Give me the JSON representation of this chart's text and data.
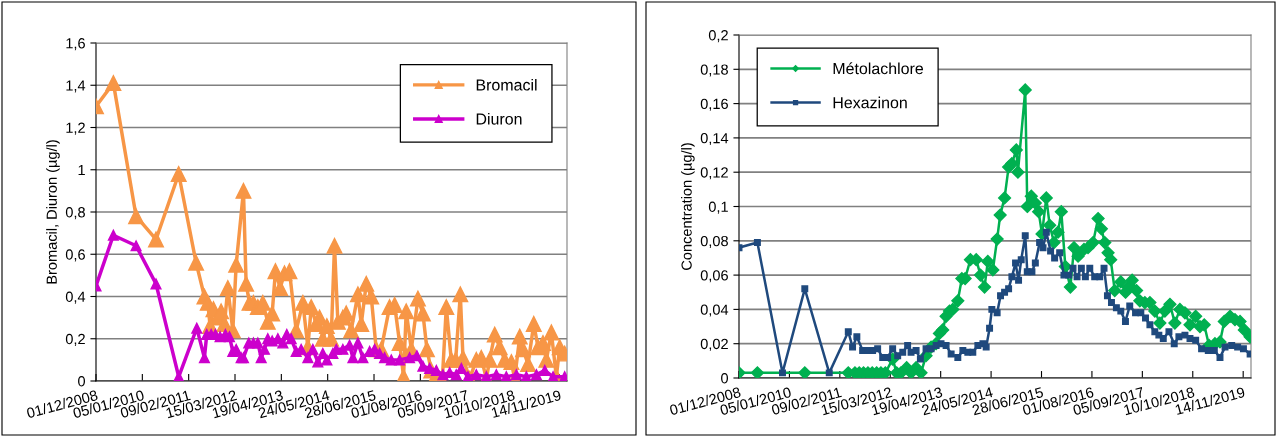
{
  "chart_data": [
    {
      "type": "line",
      "ylabel": "Bromacil, Diuron (µg/l)",
      "grid": "y",
      "legend": "top right",
      "marker": "triangle",
      "xlim": [
        "2008-12-01",
        "2020-01-19"
      ],
      "xticks": [
        {
          "value": "2008-12-01",
          "label": "01/12/2008"
        },
        {
          "value": "2010-01-05",
          "label": "05/01/2010"
        },
        {
          "value": "2011-02-09",
          "label": "09/02/2011"
        },
        {
          "value": "2012-03-15",
          "label": "15/03/2012"
        },
        {
          "value": "2013-04-19",
          "label": "19/04/2013"
        },
        {
          "value": "2014-05-24",
          "label": "24/05/2014"
        },
        {
          "value": "2015-06-28",
          "label": "28/06/2015"
        },
        {
          "value": "2016-08-01",
          "label": "01/08/2016"
        },
        {
          "value": "2017-09-05",
          "label": "05/09/2017"
        },
        {
          "value": "2018-10-10",
          "label": "10/10/2018"
        },
        {
          "value": "2019-11-14",
          "label": "14/11/2019"
        }
      ],
      "ylim": [
        0,
        1.6
      ],
      "yticks": [
        0,
        {
          "value": 0.2,
          "label": "0,2"
        },
        {
          "value": 0.4,
          "label": "0,4"
        },
        {
          "value": 0.6,
          "label": "0,6"
        },
        {
          "value": 0.8,
          "label": "0,8"
        },
        1,
        {
          "value": 1.2,
          "label": "1,2"
        },
        {
          "value": 1.4,
          "label": "1,4"
        },
        {
          "value": 1.6,
          "label": "1,6"
        }
      ],
      "series": [
        {
          "name": "Bromacil",
          "color": "#f79646",
          "x": [
            "2008-12-01",
            "2009-04-30",
            "2009-11-12",
            "2010-05-03",
            "2010-11-15",
            "2011-04-14",
            "2011-06-25",
            "2011-07-24",
            "2011-08-13",
            "2011-09-11",
            "2011-10-18",
            "2011-11-16",
            "2011-12-15",
            "2012-01-13",
            "2012-02-25",
            "2012-03-25",
            "2012-05-27",
            "2012-06-19",
            "2012-07-18",
            "2012-08-21",
            "2012-09-28",
            "2012-11-10",
            "2012-12-23",
            "2013-01-30",
            "2013-02-27",
            "2013-04-09",
            "2013-05-16",
            "2013-06-28",
            "2013-08-25",
            "2013-10-22",
            "2013-12-04",
            "2014-01-02",
            "2014-02-14",
            "2014-03-15",
            "2014-04-12",
            "2014-05-17",
            "2014-06-23",
            "2014-07-22",
            "2014-08-20",
            "2014-10-02",
            "2014-10-31",
            "2014-12-13",
            "2015-02-09",
            "2015-03-10",
            "2015-04-22",
            "2015-06-04",
            "2015-07-17",
            "2015-08-29",
            "2015-11-09",
            "2015-12-23",
            "2016-02-04",
            "2016-03-09",
            "2016-04-01",
            "2016-05-15",
            "2016-07-11",
            "2016-08-23",
            "2016-09-27",
            "2016-11-03",
            "2016-12-17",
            "2017-02-06",
            "2017-03-13",
            "2017-04-25",
            "2017-06-02",
            "2017-07-12",
            "2017-08-04",
            "2017-10-01",
            "2017-11-27",
            "2018-01-09",
            "2018-02-22",
            "2018-03-22",
            "2018-05-05",
            "2018-06-17",
            "2018-07-30",
            "2018-09-26",
            "2018-10-24",
            "2018-12-07",
            "2019-01-04",
            "2019-02-17",
            "2019-04-07",
            "2019-05-14",
            "2019-06-26",
            "2019-07-25",
            "2019-09-06",
            "2019-10-19",
            "2019-11-17",
            "2019-12-30"
          ],
          "values": [
            1.3,
            1.41,
            0.78,
            0.67,
            0.98,
            0.56,
            0.4,
            0.37,
            0.26,
            0.34,
            0.3,
            0.33,
            0.27,
            0.44,
            0.24,
            0.55,
            0.9,
            0.46,
            0.37,
            0.37,
            0.35,
            0.37,
            0.28,
            0.32,
            0.52,
            0.44,
            0.51,
            0.52,
            0.24,
            0.37,
            0.16,
            0.35,
            0.27,
            0.3,
            0.2,
            0.26,
            0.2,
            0.64,
            0.28,
            0.3,
            0.32,
            0.24,
            0.41,
            0.27,
            0.46,
            0.4,
            0.15,
            0.15,
            0.35,
            0.36,
            0.18,
            0.02,
            0.33,
            0.15,
            0.39,
            0.32,
            0.15,
            0.05,
            0.03,
            0.0,
            0.35,
            0.1,
            0.1,
            0.41,
            0.11,
            0.01,
            0.1,
            0.11,
            0.01,
            0.1,
            0.22,
            0.16,
            0.1,
            0.09,
            0.01,
            0.21,
            0.15,
            0.08,
            0.27,
            0.16,
            0.18,
            0.1,
            0.23,
            0.02,
            0.16,
            0.13
          ]
        },
        {
          "name": "Diuron",
          "color": "#cc00cc",
          "x": [
            "2008-12-01",
            "2009-04-30",
            "2009-11-12",
            "2010-05-03",
            "2010-11-15",
            "2011-04-20",
            "2011-06-25",
            "2011-07-15",
            "2011-08-22",
            "2011-09-28",
            "2011-11-07",
            "2011-12-23",
            "2012-01-27",
            "2012-02-25",
            "2012-03-25",
            "2012-05-07",
            "2012-05-27",
            "2012-07-12",
            "2012-08-21",
            "2012-09-28",
            "2012-10-27",
            "2012-11-24",
            "2012-12-23",
            "2013-01-30",
            "2013-03-20",
            "2013-05-02",
            "2013-06-05",
            "2013-07-13",
            "2013-08-25",
            "2013-10-07",
            "2013-12-04",
            "2014-01-16",
            "2014-02-28",
            "2014-04-12",
            "2014-05-17",
            "2014-07-08",
            "2014-08-06",
            "2014-10-02",
            "2014-11-29",
            "2014-12-28",
            "2015-02-09",
            "2015-03-24",
            "2015-05-21",
            "2015-07-03",
            "2015-08-15",
            "2015-09-27",
            "2015-11-24",
            "2016-02-04",
            "2016-04-30",
            "2016-07-02",
            "2016-08-23",
            "2016-10-20",
            "2016-12-17",
            "2017-02-12",
            "2017-04-11",
            "2017-06-07",
            "2017-07-21",
            "2017-09-16",
            "2017-11-27",
            "2018-02-22",
            "2018-05-19",
            "2018-08-13",
            "2018-11-08",
            "2019-02-02",
            "2019-04-30",
            "2019-07-11",
            "2019-09-21",
            "2019-12-30"
          ],
          "values": [
            0.45,
            0.69,
            0.64,
            0.46,
            0.02,
            0.25,
            0.11,
            0.22,
            0.22,
            0.22,
            0.21,
            0.22,
            0.21,
            0.14,
            0.15,
            0.11,
            0.11,
            0.18,
            0.18,
            0.18,
            0.11,
            0.15,
            0.2,
            0.19,
            0.2,
            0.18,
            0.22,
            0.2,
            0.14,
            0.15,
            0.11,
            0.15,
            0.09,
            0.13,
            0.1,
            0.13,
            0.15,
            0.15,
            0.17,
            0.11,
            0.18,
            0.11,
            0.14,
            0.15,
            0.13,
            0.11,
            0.1,
            0.1,
            0.11,
            0.12,
            0.07,
            0.06,
            0.05,
            0.03,
            0.04,
            0.03,
            0.06,
            0.02,
            0.03,
            0.02,
            0.03,
            0.02,
            0.03,
            0.02,
            0.03,
            0.05,
            0.02,
            0.02
          ]
        }
      ]
    },
    {
      "type": "line",
      "ylabel": "Concentration (µg/l)",
      "grid": "y",
      "legend": "top left",
      "xlim": [
        "2008-12-01",
        "2020-01-15"
      ],
      "xticks": [
        {
          "value": "2008-12-01",
          "label": "01/12/2008"
        },
        {
          "value": "2010-01-05",
          "label": "05/01/2010"
        },
        {
          "value": "2011-02-09",
          "label": "09/02/2011"
        },
        {
          "value": "2012-03-15",
          "label": "15/03/2012"
        },
        {
          "value": "2013-04-19",
          "label": "19/04/2013"
        },
        {
          "value": "2014-05-24",
          "label": "24/05/2014"
        },
        {
          "value": "2015-06-28",
          "label": "28/06/2015"
        },
        {
          "value": "2016-08-01",
          "label": "01/08/2016"
        },
        {
          "value": "2017-09-05",
          "label": "05/09/2017"
        },
        {
          "value": "2018-10-10",
          "label": "10/10/2018"
        },
        {
          "value": "2019-11-14",
          "label": "14/11/2019"
        }
      ],
      "ylim": [
        0,
        0.2
      ],
      "yticks": [
        0,
        {
          "value": 0.02,
          "label": "0,02"
        },
        {
          "value": 0.04,
          "label": "0,04"
        },
        {
          "value": 0.06,
          "label": "0,06"
        },
        {
          "value": 0.08,
          "label": "0,08"
        },
        {
          "value": 0.1,
          "label": "0,1"
        },
        {
          "value": 0.12,
          "label": "0,12"
        },
        {
          "value": 0.14,
          "label": "0,14"
        },
        {
          "value": 0.16,
          "label": "0,16"
        },
        {
          "value": 0.18,
          "label": "0,18"
        },
        {
          "value": 0.2,
          "label": "0,2"
        }
      ],
      "series": [
        {
          "name": "Métolachlore",
          "color": "#00b050",
          "marker": "diamond",
          "x": [
            "2008-12-01",
            "2009-04-26",
            "2010-05-07",
            "2011-04-17",
            "2011-06-09",
            "2011-07-13",
            "2011-08-16",
            "2011-09-20",
            "2011-10-24",
            "2011-11-28",
            "2012-01-01",
            "2012-02-05",
            "2012-04-03",
            "2012-05-05",
            "2012-06-08",
            "2012-07-23",
            "2012-08-27",
            "2012-10-06",
            "2012-11-14",
            "2012-12-24",
            "2013-02-02",
            "2013-03-14",
            "2013-04-09",
            "2013-05-05",
            "2013-06-01",
            "2013-06-28",
            "2013-07-24",
            "2013-09-02",
            "2013-10-04",
            "2013-10-30",
            "2013-12-11",
            "2014-01-26",
            "2014-03-01",
            "2014-04-02",
            "2014-04-28",
            "2014-06-07",
            "2014-07-11",
            "2014-08-04",
            "2014-09-08",
            "2014-10-10",
            "2014-11-05",
            "2014-12-10",
            "2014-12-23",
            "2015-02-19",
            "2015-03-07",
            "2015-04-08",
            "2015-05-10",
            "2015-06-05",
            "2015-07-02",
            "2015-08-05",
            "2015-09-01",
            "2015-10-05",
            "2015-11-06",
            "2015-12-02",
            "2016-01-03",
            "2016-02-12",
            "2016-03-12",
            "2016-04-13",
            "2016-05-30",
            "2016-07-01",
            "2016-08-10",
            "2016-09-19",
            "2016-10-15",
            "2016-11-11",
            "2016-12-07",
            "2016-12-28",
            "2017-01-29",
            "2017-03-18",
            "2017-04-24",
            "2017-05-21",
            "2017-06-16",
            "2017-07-21",
            "2017-08-16",
            "2017-09-25",
            "2017-11-04",
            "2017-12-13",
            "2018-01-22",
            "2018-03-03",
            "2018-04-12",
            "2018-05-21",
            "2018-06-30",
            "2018-08-09",
            "2018-09-18",
            "2018-11-02",
            "2018-12-06",
            "2019-01-09",
            "2019-02-16",
            "2019-04-04",
            "2019-05-14",
            "2019-06-17",
            "2019-08-02",
            "2019-09-10",
            "2019-10-20",
            "2019-11-23",
            "2020-01-08"
          ],
          "values": [
            0.003,
            0.003,
            0.003,
            0.003,
            0.003,
            0.003,
            0.003,
            0.003,
            0.003,
            0.003,
            0.003,
            0.003,
            0.011,
            0.003,
            0.003,
            0.006,
            0.003,
            0.006,
            0.003,
            0.013,
            0.018,
            0.02,
            0.026,
            0.028,
            0.036,
            0.039,
            0.04,
            0.045,
            0.058,
            0.058,
            0.069,
            0.069,
            0.06,
            0.053,
            0.068,
            0.063,
            0.081,
            0.095,
            0.105,
            0.123,
            0.125,
            0.133,
            0.12,
            0.168,
            0.1,
            0.106,
            0.102,
            0.097,
            0.084,
            0.105,
            0.089,
            0.079,
            0.085,
            0.097,
            0.065,
            0.053,
            0.076,
            0.071,
            0.075,
            0.076,
            0.079,
            0.093,
            0.087,
            0.079,
            0.073,
            0.069,
            0.051,
            0.056,
            0.05,
            0.053,
            0.057,
            0.051,
            0.045,
            0.044,
            0.044,
            0.039,
            0.032,
            0.039,
            0.043,
            0.032,
            0.04,
            0.038,
            0.031,
            0.036,
            0.03,
            0.031,
            0.019,
            0.02,
            0.021,
            0.033,
            0.036,
            0.034,
            0.033,
            0.028,
            0.024
          ]
        },
        {
          "name": "Hexazinon",
          "color": "#1f497d",
          "marker": "square",
          "x": [
            "2008-12-01",
            "2009-04-26",
            "2009-11-11",
            "2010-05-07",
            "2010-11-17",
            "2011-04-17",
            "2011-05-21",
            "2011-06-24",
            "2011-08-09",
            "2011-09-17",
            "2011-10-27",
            "2011-12-06",
            "2012-01-15",
            "2012-02-23",
            "2012-04-03",
            "2012-05-13",
            "2012-06-22",
            "2012-07-31",
            "2012-08-27",
            "2012-10-06",
            "2012-11-09",
            "2012-12-24",
            "2013-02-02",
            "2013-03-14",
            "2013-04-22",
            "2013-06-01",
            "2013-07-11",
            "2013-09-02",
            "2013-10-12",
            "2013-11-20",
            "2013-12-30",
            "2014-02-08",
            "2014-03-20",
            "2014-04-15",
            "2014-05-12",
            "2014-05-30",
            "2014-07-11",
            "2014-08-07",
            "2014-09-08",
            "2014-10-10",
            "2014-11-05",
            "2014-12-04",
            "2014-12-28",
            "2015-01-18",
            "2015-02-19",
            "2015-03-07",
            "2015-04-13",
            "2015-05-10",
            "2015-06-13",
            "2015-07-10",
            "2015-08-05",
            "2015-09-08",
            "2015-10-10",
            "2015-11-19",
            "2015-12-23",
            "2016-01-30",
            "2016-03-04",
            "2016-04-05",
            "2016-05-09",
            "2016-06-10",
            "2016-07-15",
            "2016-08-23",
            "2016-10-02",
            "2016-11-05",
            "2016-12-02",
            "2017-01-03",
            "2017-02-11",
            "2017-03-18",
            "2017-04-24",
            "2017-05-28",
            "2017-07-13",
            "2017-08-24",
            "2017-09-30",
            "2017-11-04",
            "2017-12-13",
            "2018-01-14",
            "2018-02-18",
            "2018-04-04",
            "2018-05-16",
            "2018-06-22",
            "2018-08-09",
            "2018-09-18",
            "2018-11-02",
            "2018-12-19",
            "2019-02-10",
            "2019-03-30",
            "2019-05-14",
            "2019-06-23",
            "2019-08-15",
            "2019-10-01",
            "2019-11-16",
            "2020-01-08"
          ],
          "values": [
            0.076,
            0.079,
            0.003,
            0.052,
            0.003,
            0.027,
            0.018,
            0.024,
            0.016,
            0.016,
            0.016,
            0.017,
            0.012,
            0.012,
            0.017,
            0.013,
            0.015,
            0.019,
            0.015,
            0.016,
            0.011,
            0.017,
            0.017,
            0.019,
            0.02,
            0.019,
            0.014,
            0.012,
            0.016,
            0.015,
            0.015,
            0.019,
            0.02,
            0.018,
            0.029,
            0.04,
            0.038,
            0.048,
            0.05,
            0.052,
            0.059,
            0.067,
            0.057,
            0.069,
            0.083,
            0.062,
            0.062,
            0.067,
            0.079,
            0.076,
            0.085,
            0.074,
            0.07,
            0.073,
            0.06,
            0.06,
            0.064,
            0.059,
            0.064,
            0.059,
            0.064,
            0.059,
            0.059,
            0.064,
            0.048,
            0.044,
            0.041,
            0.039,
            0.033,
            0.042,
            0.038,
            0.038,
            0.035,
            0.031,
            0.027,
            0.025,
            0.023,
            0.027,
            0.02,
            0.024,
            0.025,
            0.023,
            0.022,
            0.017,
            0.016,
            0.016,
            0.012,
            0.018,
            0.019,
            0.018,
            0.017,
            0.014
          ]
        }
      ]
    }
  ]
}
